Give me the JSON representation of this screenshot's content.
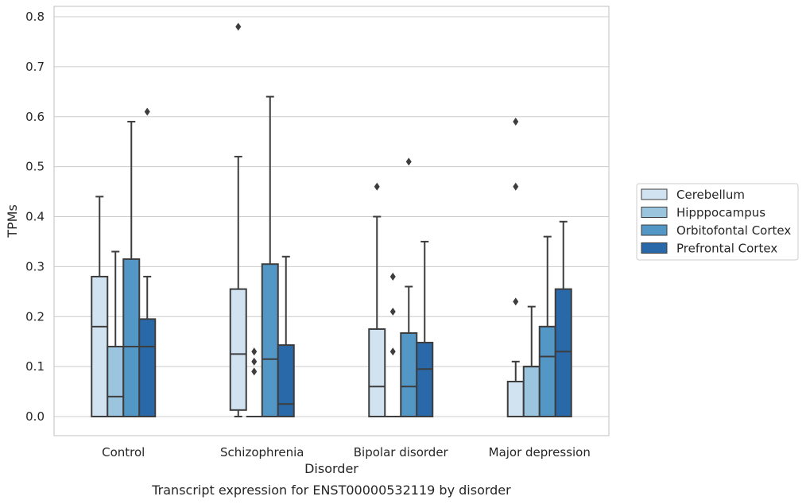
{
  "chart_data": {
    "type": "box",
    "xlabel": "Disorder",
    "ylabel": "TPMs",
    "caption": "Transcript expression for ENST00000532119 by disorder",
    "ylim": [
      -0.04,
      0.82
    ],
    "yticks": [
      0.0,
      0.1,
      0.2,
      0.3,
      0.4,
      0.5,
      0.6,
      0.7,
      0.8
    ],
    "ytick_labels": [
      "0.0",
      "0.1",
      "0.2",
      "0.3",
      "0.4",
      "0.5",
      "0.6",
      "0.7",
      "0.8"
    ],
    "grid": "horizontal",
    "legend_position": "right",
    "categories": [
      "Control",
      "Schizophrenia",
      "Bipolar disorder",
      "Major depression"
    ],
    "series": [
      {
        "name": "Cerebellum",
        "color": "#d1e2f1",
        "boxes": [
          {
            "whislo": 0.0,
            "q1": 0.0,
            "med": 0.18,
            "q3": 0.28,
            "whishi": 0.44,
            "fliers": []
          },
          {
            "whislo": 0.0,
            "q1": 0.013,
            "med": 0.125,
            "q3": 0.255,
            "whishi": 0.52,
            "fliers": [
              0.78
            ]
          },
          {
            "whislo": 0.0,
            "q1": 0.0,
            "med": 0.06,
            "q3": 0.175,
            "whishi": 0.4,
            "fliers": [
              0.46
            ]
          },
          {
            "whislo": 0.0,
            "q1": 0.0,
            "med": 0.0,
            "q3": 0.07,
            "whishi": 0.11,
            "fliers": [
              0.23,
              0.46,
              0.59
            ]
          }
        ]
      },
      {
        "name": "Hipppocampus",
        "color": "#9bc4de",
        "boxes": [
          {
            "whislo": 0.0,
            "q1": 0.0,
            "med": 0.04,
            "q3": 0.14,
            "whishi": 0.33,
            "fliers": []
          },
          {
            "whislo": 0.0,
            "q1": 0.0,
            "med": 0.0,
            "q3": 0.0,
            "whishi": 0.0,
            "fliers": [
              0.09,
              0.11,
              0.13
            ]
          },
          {
            "whislo": 0.0,
            "q1": 0.0,
            "med": 0.0,
            "q3": 0.0,
            "whishi": 0.0,
            "fliers": [
              0.13,
              0.21,
              0.28
            ]
          },
          {
            "whislo": 0.0,
            "q1": 0.0,
            "med": 0.1,
            "q3": 0.1,
            "whishi": 0.22,
            "fliers": []
          }
        ]
      },
      {
        "name": "Orbitofontal Cortex",
        "color": "#5397c6",
        "boxes": [
          {
            "whislo": 0.0,
            "q1": 0.0,
            "med": 0.14,
            "q3": 0.315,
            "whishi": 0.59,
            "fliers": []
          },
          {
            "whislo": 0.0,
            "q1": 0.0,
            "med": 0.115,
            "q3": 0.305,
            "whishi": 0.64,
            "fliers": []
          },
          {
            "whislo": 0.0,
            "q1": 0.0,
            "med": 0.06,
            "q3": 0.167,
            "whishi": 0.26,
            "fliers": [
              0.51
            ]
          },
          {
            "whislo": 0.0,
            "q1": 0.0,
            "med": 0.12,
            "q3": 0.18,
            "whishi": 0.36,
            "fliers": []
          }
        ]
      },
      {
        "name": "Prefrontal Cortex",
        "color": "#2a69a9",
        "boxes": [
          {
            "whislo": 0.0,
            "q1": 0.0,
            "med": 0.14,
            "q3": 0.195,
            "whishi": 0.28,
            "fliers": [
              0.61
            ]
          },
          {
            "whislo": 0.0,
            "q1": 0.0,
            "med": 0.025,
            "q3": 0.143,
            "whishi": 0.32,
            "fliers": []
          },
          {
            "whislo": 0.0,
            "q1": 0.0,
            "med": 0.095,
            "q3": 0.148,
            "whishi": 0.35,
            "fliers": []
          },
          {
            "whislo": 0.0,
            "q1": 0.0,
            "med": 0.13,
            "q3": 0.255,
            "whishi": 0.39,
            "fliers": []
          }
        ]
      }
    ]
  }
}
